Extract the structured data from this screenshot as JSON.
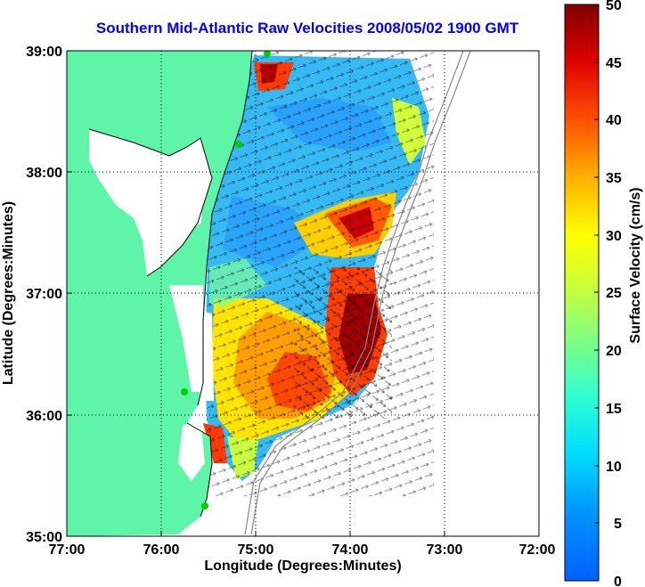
{
  "title": "Southern Mid-Atlantic Raw Velocities 2008/05/02 1900 GMT",
  "map": {
    "xlabel": "Longitude (Degrees:Minutes)",
    "ylabel": "Latitude (Degrees:Minutes)",
    "x_ticks": [
      "77:00",
      "76:00",
      "75:00",
      "74:00",
      "73:00",
      "72:00"
    ],
    "y_ticks": [
      "39:00",
      "38:00",
      "37:00",
      "36:00",
      "35:00"
    ],
    "x_range": [
      -77,
      -72
    ],
    "y_range": [
      35,
      39
    ],
    "grid": "dotted",
    "land_color": "#5ff5a8"
  },
  "colorbar": {
    "label": "Surface Velocity (cm/s)",
    "ticks": [
      "50",
      "45",
      "40",
      "35",
      "30",
      "25",
      "20",
      "15",
      "10",
      "5",
      "0"
    ],
    "range": [
      0,
      50
    ],
    "colormap": "jet"
  }
}
